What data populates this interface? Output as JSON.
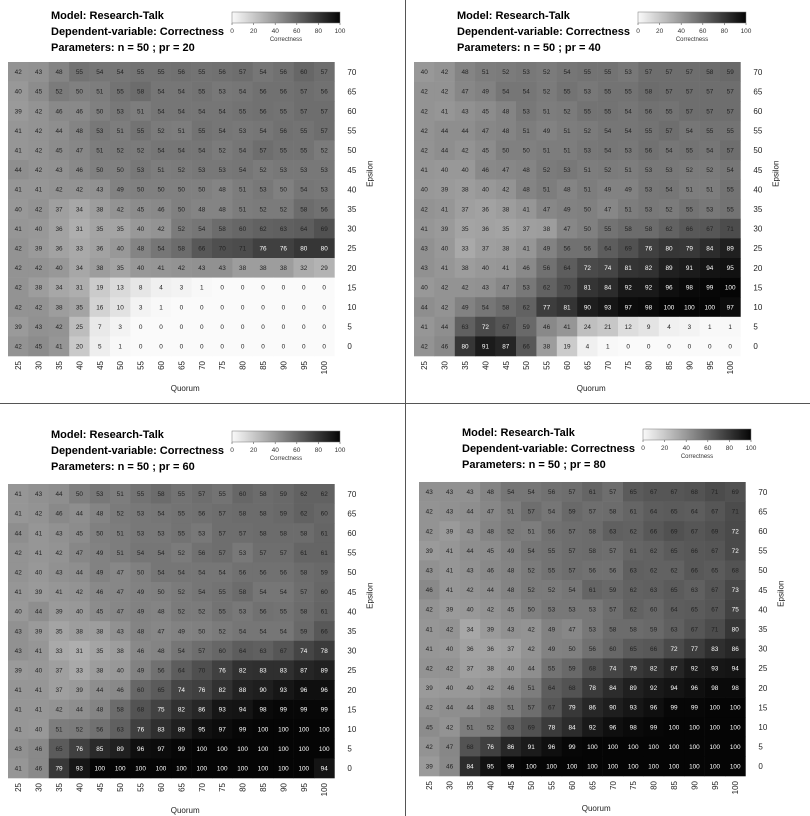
{
  "legend": {
    "ticks": [
      "0",
      "20",
      "40",
      "60",
      "80",
      "100"
    ],
    "label": "Correctness"
  },
  "axes": {
    "xlabel": "Quorum",
    "ylabel": "Epsilon",
    "x_ticks": [
      "25",
      "30",
      "35",
      "40",
      "45",
      "50",
      "55",
      "60",
      "65",
      "70",
      "75",
      "80",
      "85",
      "90",
      "95",
      "100"
    ],
    "y_ticks": [
      "70",
      "65",
      "60",
      "55",
      "50",
      "45",
      "40",
      "35",
      "30",
      "25",
      "20",
      "15",
      "10",
      "5",
      "0"
    ]
  },
  "chart_data": [
    {
      "type": "heatmap",
      "title_lines": [
        "Model: Research-Talk",
        "Dependent-variable: Correctness",
        "Parameters: n = 50 ; pr = 20"
      ],
      "x": [
        25,
        30,
        35,
        40,
        45,
        50,
        55,
        60,
        65,
        70,
        75,
        80,
        85,
        90,
        95,
        100
      ],
      "y": [
        70,
        65,
        60,
        55,
        50,
        45,
        40,
        35,
        30,
        25,
        20,
        15,
        10,
        5,
        0
      ],
      "values": [
        [
          42,
          43,
          48,
          55,
          54,
          54,
          55,
          55,
          56,
          55,
          56,
          57,
          54,
          56,
          60,
          57
        ],
        [
          40,
          45,
          52,
          50,
          51,
          55,
          58,
          54,
          54,
          55,
          53,
          54,
          56,
          56,
          57,
          56
        ],
        [
          39,
          42,
          46,
          46,
          50,
          53,
          51,
          54,
          54,
          54,
          54,
          55,
          56,
          55,
          57,
          57
        ],
        [
          41,
          42,
          44,
          48,
          53,
          51,
          55,
          52,
          51,
          55,
          54,
          53,
          54,
          56,
          55,
          57
        ],
        [
          41,
          42,
          45,
          47,
          51,
          52,
          52,
          54,
          54,
          54,
          52,
          54,
          57,
          55,
          55,
          52
        ],
        [
          44,
          42,
          43,
          46,
          50,
          50,
          53,
          51,
          52,
          53,
          53,
          54,
          52,
          53,
          53,
          53
        ],
        [
          41,
          41,
          42,
          42,
          43,
          49,
          50,
          50,
          50,
          50,
          48,
          51,
          53,
          50,
          54,
          53
        ],
        [
          40,
          42,
          37,
          34,
          38,
          42,
          45,
          46,
          50,
          48,
          48,
          51,
          52,
          52,
          58,
          56
        ],
        [
          41,
          40,
          36,
          31,
          35,
          35,
          40,
          42,
          52,
          54,
          58,
          60,
          62,
          63,
          64,
          69
        ],
        [
          42,
          39,
          36,
          33,
          36,
          40,
          48,
          54,
          58,
          66,
          70,
          71,
          76,
          76,
          80,
          80
        ],
        [
          42,
          42,
          40,
          34,
          38,
          35,
          40,
          41,
          42,
          43,
          43,
          38,
          38,
          38,
          32,
          29
        ],
        [
          42,
          38,
          34,
          31,
          19,
          13,
          8,
          4,
          3,
          1,
          0,
          0,
          0,
          0,
          0,
          0
        ],
        [
          42,
          42,
          38,
          35,
          16,
          10,
          3,
          1,
          0,
          0,
          0,
          0,
          0,
          0,
          0,
          0
        ],
        [
          39,
          43,
          42,
          25,
          7,
          3,
          0,
          0,
          0,
          0,
          0,
          0,
          0,
          0,
          0,
          0
        ],
        [
          42,
          45,
          41,
          20,
          5,
          1,
          0,
          0,
          0,
          0,
          0,
          0,
          0,
          0,
          0,
          0
        ]
      ]
    },
    {
      "type": "heatmap",
      "title_lines": [
        "Model: Research-Talk",
        "Dependent-variable: Correctness",
        "Parameters: n = 50 ; pr = 40"
      ],
      "x": [
        25,
        30,
        35,
        40,
        45,
        50,
        55,
        60,
        65,
        70,
        75,
        80,
        85,
        90,
        95,
        100
      ],
      "y": [
        70,
        65,
        60,
        55,
        50,
        45,
        40,
        35,
        30,
        25,
        20,
        15,
        10,
        5,
        0
      ],
      "values": [
        [
          40,
          42,
          48,
          51,
          52,
          53,
          52,
          54,
          55,
          55,
          53,
          57,
          57,
          57,
          58,
          59
        ],
        [
          42,
          42,
          47,
          49,
          54,
          54,
          52,
          55,
          53,
          55,
          55,
          58,
          57,
          57,
          57,
          57
        ],
        [
          42,
          41,
          43,
          45,
          48,
          53,
          51,
          52,
          55,
          55,
          54,
          56,
          55,
          57,
          57,
          57
        ],
        [
          42,
          44,
          44,
          47,
          48,
          51,
          49,
          51,
          52,
          54,
          54,
          55,
          57,
          54,
          55,
          55
        ],
        [
          42,
          44,
          42,
          45,
          50,
          50,
          51,
          51,
          53,
          54,
          53,
          56,
          54,
          55,
          54,
          57
        ],
        [
          41,
          40,
          40,
          46,
          47,
          48,
          52,
          53,
          51,
          52,
          51,
          53,
          53,
          52,
          52,
          54
        ],
        [
          40,
          39,
          38,
          40,
          42,
          48,
          51,
          48,
          51,
          49,
          49,
          53,
          54,
          51,
          51,
          55
        ],
        [
          42,
          41,
          37,
          36,
          38,
          41,
          47,
          49,
          50,
          47,
          51,
          53,
          52,
          55,
          53,
          55
        ],
        [
          41,
          39,
          35,
          36,
          35,
          37,
          38,
          47,
          50,
          55,
          58,
          58,
          62,
          66,
          67,
          71
        ],
        [
          43,
          40,
          33,
          37,
          38,
          41,
          49,
          56,
          56,
          64,
          69,
          76,
          80,
          79,
          84,
          89
        ],
        [
          43,
          41,
          38,
          40,
          41,
          46,
          56,
          64,
          72,
          74,
          81,
          82,
          89,
          91,
          94,
          95
        ],
        [
          40,
          42,
          42,
          43,
          47,
          53,
          62,
          70,
          81,
          84,
          92,
          92,
          96,
          98,
          99,
          100
        ],
        [
          44,
          42,
          49,
          54,
          58,
          62,
          77,
          81,
          90,
          93,
          97,
          98,
          100,
          100,
          100,
          97
        ],
        [
          41,
          44,
          63,
          72,
          67,
          59,
          46,
          41,
          24,
          21,
          12,
          9,
          4,
          3,
          1,
          1
        ],
        [
          42,
          46,
          80,
          91,
          87,
          66,
          38,
          19,
          4,
          1,
          0,
          0,
          0,
          0,
          0,
          0
        ]
      ]
    },
    {
      "type": "heatmap",
      "title_lines": [
        "Model: Research-Talk",
        "Dependent-variable: Correctness",
        "Parameters: n = 50 ; pr = 60"
      ],
      "x": [
        25,
        30,
        35,
        40,
        45,
        50,
        55,
        60,
        65,
        70,
        75,
        80,
        85,
        90,
        95,
        100
      ],
      "y": [
        70,
        65,
        60,
        55,
        50,
        45,
        40,
        35,
        30,
        25,
        20,
        15,
        10,
        5,
        0
      ],
      "values": [
        [
          41,
          43,
          44,
          50,
          53,
          51,
          55,
          58,
          55,
          57,
          55,
          60,
          58,
          59,
          62,
          62
        ],
        [
          41,
          42,
          46,
          44,
          48,
          52,
          53,
          54,
          55,
          56,
          57,
          58,
          58,
          59,
          62,
          60
        ],
        [
          44,
          41,
          43,
          45,
          50,
          51,
          53,
          53,
          55,
          53,
          57,
          57,
          58,
          58,
          58,
          61
        ],
        [
          42,
          41,
          42,
          47,
          49,
          51,
          54,
          54,
          52,
          56,
          57,
          53,
          57,
          57,
          61,
          61
        ],
        [
          42,
          40,
          43,
          44,
          49,
          47,
          50,
          54,
          54,
          54,
          54,
          56,
          56,
          56,
          58,
          59
        ],
        [
          41,
          39,
          41,
          42,
          46,
          47,
          49,
          50,
          52,
          54,
          55,
          58,
          54,
          54,
          57,
          60
        ],
        [
          40,
          44,
          39,
          40,
          45,
          47,
          49,
          48,
          52,
          52,
          55,
          53,
          56,
          55,
          58,
          61
        ],
        [
          43,
          39,
          35,
          38,
          38,
          43,
          48,
          47,
          49,
          50,
          52,
          54,
          54,
          54,
          59,
          66
        ],
        [
          43,
          41,
          33,
          31,
          35,
          38,
          46,
          48,
          54,
          57,
          60,
          64,
          63,
          67,
          74,
          78
        ],
        [
          39,
          40,
          37,
          33,
          38,
          40,
          49,
          56,
          64,
          70,
          76,
          82,
          83,
          83,
          87,
          89
        ],
        [
          41,
          41,
          37,
          39,
          44,
          46,
          60,
          65,
          74,
          76,
          82,
          88,
          90,
          93,
          96,
          96
        ],
        [
          41,
          41,
          42,
          44,
          48,
          58,
          68,
          75,
          82,
          86,
          93,
          94,
          98,
          99,
          99,
          99
        ],
        [
          41,
          40,
          51,
          52,
          56,
          63,
          76,
          83,
          89,
          95,
          97,
          99,
          100,
          100,
          100,
          100
        ],
        [
          43,
          46,
          65,
          76,
          85,
          89,
          96,
          97,
          99,
          100,
          100,
          100,
          100,
          100,
          100,
          100
        ],
        [
          41,
          46,
          79,
          93,
          100,
          100,
          100,
          100,
          100,
          100,
          100,
          100,
          100,
          100,
          100,
          94
        ]
      ]
    },
    {
      "type": "heatmap",
      "title_lines": [
        "Model: Research-Talk",
        "Dependent-variable: Correctness",
        "Parameters: n = 50 ; pr = 80"
      ],
      "x": [
        25,
        30,
        35,
        40,
        45,
        50,
        55,
        60,
        65,
        70,
        75,
        80,
        85,
        90,
        95,
        100
      ],
      "y": [
        70,
        65,
        60,
        55,
        50,
        45,
        40,
        35,
        30,
        25,
        20,
        15,
        10,
        5,
        0
      ],
      "values": [
        [
          43,
          43,
          43,
          48,
          54,
          54,
          56,
          57,
          61,
          57,
          65,
          67,
          67,
          68,
          71,
          69
        ],
        [
          42,
          43,
          44,
          47,
          51,
          57,
          54,
          59,
          57,
          58,
          61,
          64,
          65,
          64,
          67,
          71
        ],
        [
          42,
          39,
          43,
          48,
          52,
          51,
          56,
          57,
          58,
          63,
          62,
          66,
          69,
          67,
          69,
          72
        ],
        [
          39,
          41,
          44,
          45,
          49,
          54,
          55,
          57,
          58,
          57,
          61,
          62,
          65,
          66,
          67,
          72
        ],
        [
          43,
          41,
          43,
          46,
          48,
          52,
          55,
          57,
          56,
          56,
          63,
          62,
          62,
          66,
          65,
          68
        ],
        [
          46,
          41,
          42,
          44,
          48,
          52,
          52,
          54,
          61,
          59,
          62,
          63,
          65,
          63,
          67,
          73
        ],
        [
          42,
          39,
          40,
          42,
          45,
          50,
          53,
          53,
          53,
          57,
          62,
          60,
          64,
          65,
          67,
          75
        ],
        [
          41,
          42,
          34,
          39,
          43,
          42,
          49,
          47,
          53,
          58,
          58,
          59,
          63,
          67,
          71,
          80
        ],
        [
          41,
          40,
          36,
          36,
          37,
          42,
          49,
          50,
          56,
          60,
          65,
          66,
          72,
          77,
          83,
          86
        ],
        [
          42,
          42,
          37,
          38,
          40,
          44,
          55,
          59,
          68,
          74,
          79,
          82,
          87,
          92,
          93,
          94
        ],
        [
          39,
          40,
          40,
          42,
          46,
          51,
          64,
          68,
          78,
          84,
          89,
          92,
          94,
          96,
          98,
          98
        ],
        [
          42,
          44,
          44,
          48,
          51,
          57,
          67,
          79,
          86,
          90,
          93,
          96,
          99,
          99,
          100,
          100
        ],
        [
          45,
          42,
          51,
          52,
          63,
          69,
          78,
          84,
          92,
          96,
          98,
          99,
          100,
          100,
          100,
          100
        ],
        [
          42,
          47,
          68,
          76,
          86,
          91,
          96,
          99,
          100,
          100,
          100,
          100,
          100,
          100,
          100,
          100
        ],
        [
          39,
          46,
          84,
          95,
          99,
          100,
          100,
          100,
          100,
          100,
          100,
          100,
          100,
          100,
          100,
          100
        ]
      ]
    }
  ]
}
